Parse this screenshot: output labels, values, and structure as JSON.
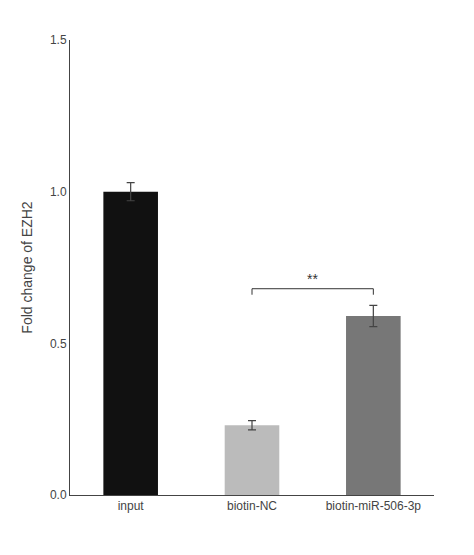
{
  "chart_data": {
    "type": "bar",
    "categories": [
      "input",
      "biotin-NC",
      "biotin-miR-506-3p"
    ],
    "values": [
      1.0,
      0.23,
      0.59
    ],
    "errors": [
      0.03,
      0.015,
      0.035
    ],
    "colors": [
      "#111111",
      "#bbbbbb",
      "#777777"
    ],
    "ylabel": "Fold change of EZH2",
    "ylim": [
      0,
      1.5
    ],
    "yticks": [
      {
        "value": 0.0,
        "label": "0.0"
      },
      0.5,
      {
        "value": 1.0,
        "label": "1.0"
      },
      1.5
    ],
    "grid": false,
    "annotations": [
      {
        "text": "**",
        "from": "biotin-NC",
        "to": "biotin-miR-506-3p",
        "y": 0.68
      }
    ]
  }
}
